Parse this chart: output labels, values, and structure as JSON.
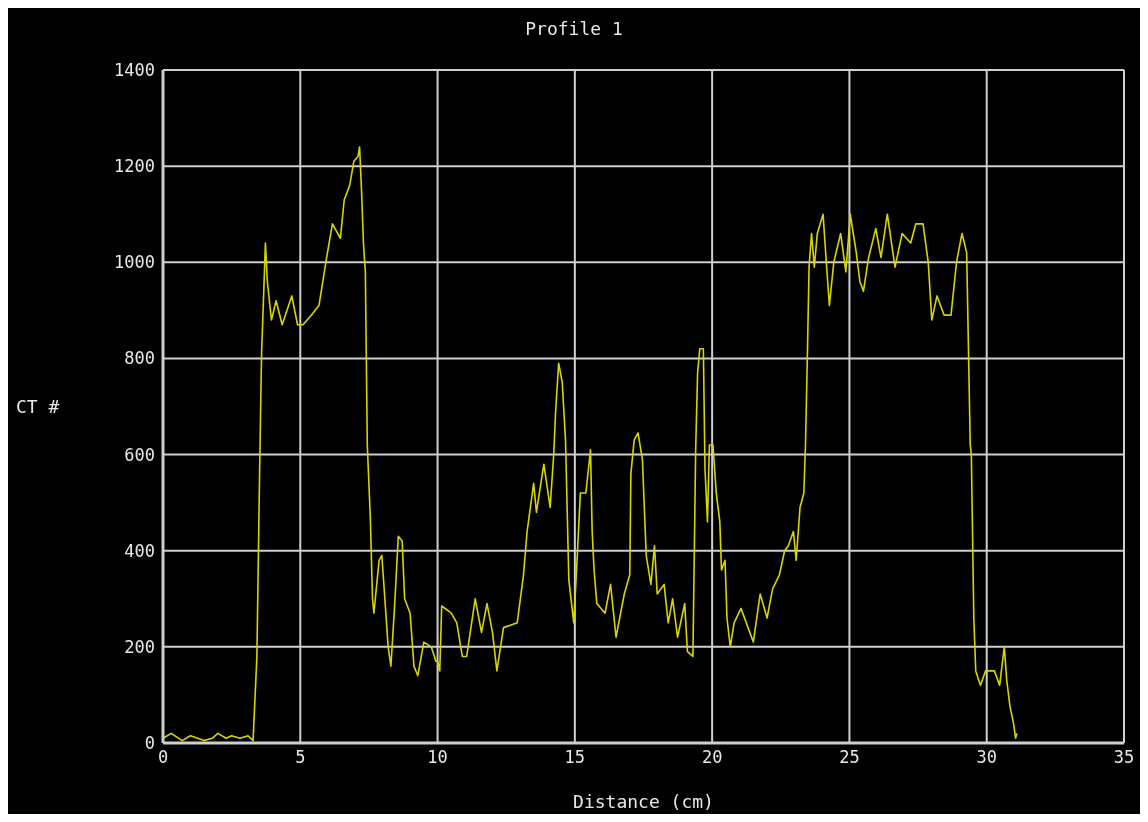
{
  "chart_data": {
    "type": "line",
    "title": "Profile 1",
    "xlabel": "Distance (cm)",
    "ylabel": "CT #",
    "xlim": [
      0,
      35
    ],
    "xticks": [
      0,
      5,
      10,
      15,
      20,
      25,
      30,
      35
    ],
    "ylim": [
      0,
      1400
    ],
    "yticks": [
      0,
      200,
      400,
      600,
      800,
      1000,
      1200,
      1400
    ],
    "grid": true,
    "marker": "none",
    "line_style": "solid",
    "series": [
      {
        "color": "#d8d400",
        "x": [
          0,
          0.3,
          0.7,
          1.0,
          1.5,
          1.8,
          2.0,
          2.3,
          2.5,
          2.8,
          3.1,
          3.28,
          3.42,
          3.52,
          3.59,
          3.67,
          3.73,
          3.8,
          3.95,
          4.12,
          4.34,
          4.69,
          4.9,
          5.1,
          5.4,
          5.68,
          5.82,
          5.96,
          6.17,
          6.46,
          6.6,
          6.8,
          6.95,
          7.1,
          7.16,
          7.23,
          7.3,
          7.37,
          7.44,
          7.55,
          7.63,
          7.68,
          7.87,
          7.97,
          8.08,
          8.2,
          8.3,
          8.43,
          8.57,
          8.71,
          8.8,
          9.0,
          9.14,
          9.28,
          9.5,
          9.77,
          9.94,
          10.0,
          10.08,
          10.15,
          10.5,
          10.7,
          10.9,
          11.06,
          11.37,
          11.6,
          11.8,
          12.0,
          12.16,
          12.4,
          12.9,
          13.13,
          13.26,
          13.5,
          13.6,
          13.87,
          14.1,
          14.23,
          14.3,
          14.41,
          14.54,
          14.66,
          14.78,
          14.96,
          15.08,
          15.2,
          15.4,
          15.57,
          15.63,
          15.7,
          15.8,
          16.1,
          16.3,
          16.5,
          16.8,
          17.0,
          17.04,
          17.16,
          17.3,
          17.46,
          17.6,
          17.77,
          17.9,
          18.0,
          18.25,
          18.4,
          18.56,
          18.74,
          19.0,
          19.1,
          19.3,
          19.4,
          19.47,
          19.55,
          19.68,
          19.74,
          19.83,
          19.9,
          20.03,
          20.15,
          20.28,
          20.34,
          20.47,
          20.54,
          20.66,
          20.8,
          21.05,
          21.5,
          21.75,
          22.0,
          22.2,
          22.45,
          22.64,
          22.77,
          22.96,
          23.06,
          23.2,
          23.34,
          23.4,
          23.47,
          23.53,
          23.62,
          23.72,
          23.83,
          24.04,
          24.17,
          24.27,
          24.43,
          24.68,
          24.87,
          25.03,
          25.25,
          25.38,
          25.51,
          25.7,
          25.96,
          26.15,
          26.38,
          26.66,
          26.92,
          27.23,
          27.42,
          27.68,
          27.87,
          28.0,
          28.19,
          28.45,
          28.7,
          28.9,
          29.1,
          29.27,
          29.4,
          29.44,
          29.53,
          29.6,
          29.77,
          29.96,
          30.28,
          30.47,
          30.64,
          30.73,
          30.85,
          30.98,
          31.05,
          31.1
        ],
        "values": [
          10,
          20,
          5,
          15,
          5,
          10,
          20,
          10,
          15,
          10,
          15,
          5,
          180,
          570,
          810,
          940,
          1040,
          960,
          880,
          920,
          870,
          930,
          870,
          870,
          890,
          910,
          960,
          1010,
          1080,
          1050,
          1130,
          1160,
          1210,
          1220,
          1240,
          1150,
          1040,
          980,
          620,
          470,
          300,
          270,
          380,
          390,
          300,
          200,
          160,
          280,
          430,
          420,
          300,
          270,
          160,
          140,
          210,
          200,
          170,
          170,
          150,
          285,
          270,
          250,
          180,
          180,
          300,
          230,
          290,
          230,
          150,
          240,
          250,
          350,
          440,
          540,
          480,
          580,
          490,
          600,
          690,
          790,
          750,
          630,
          340,
          250,
          380,
          520,
          520,
          610,
          440,
          360,
          290,
          270,
          330,
          220,
          310,
          350,
          560,
          630,
          645,
          590,
          390,
          330,
          410,
          310,
          330,
          250,
          300,
          220,
          290,
          190,
          180,
          610,
          770,
          820,
          820,
          570,
          460,
          620,
          620,
          520,
          460,
          360,
          380,
          260,
          200,
          250,
          280,
          210,
          310,
          260,
          320,
          350,
          400,
          410,
          440,
          380,
          490,
          520,
          620,
          810,
          990,
          1060,
          990,
          1060,
          1100,
          990,
          910,
          1000,
          1060,
          980,
          1100,
          1020,
          960,
          940,
          1010,
          1070,
          1010,
          1100,
          990,
          1060,
          1040,
          1080,
          1080,
          1000,
          880,
          930,
          890,
          890,
          1000,
          1060,
          1020,
          620,
          600,
          260,
          150,
          120,
          150,
          150,
          120,
          200,
          130,
          75,
          40,
          10,
          20
        ]
      }
    ]
  }
}
